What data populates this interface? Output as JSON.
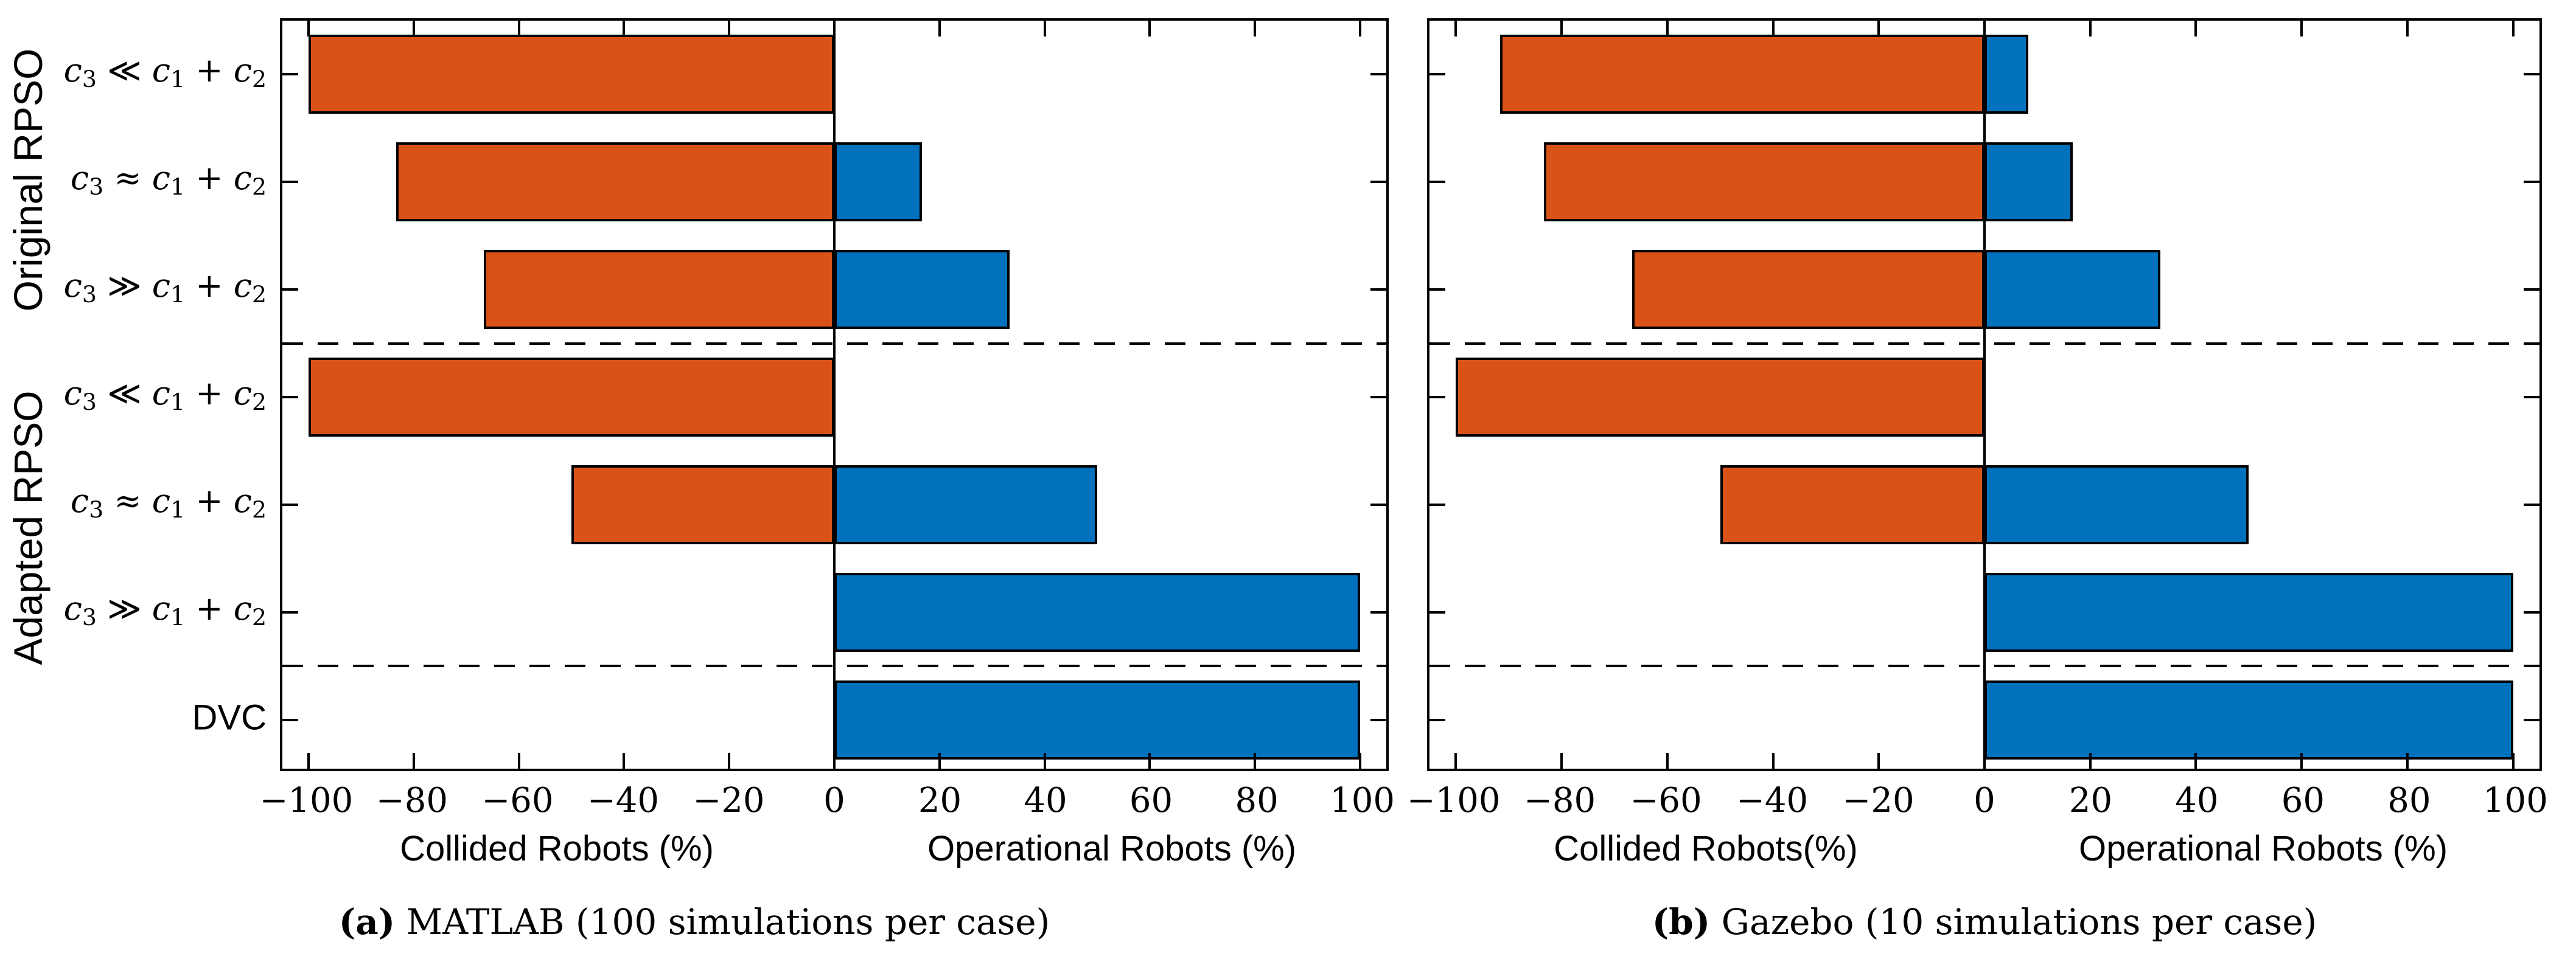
{
  "figure": {
    "y_group_labels": [
      "Original RPSO",
      "Adapted RPSO"
    ],
    "categories": [
      "c3 ≪ c1 + c2",
      "c3 ≈ c1 + c2",
      "c3 ≫ c1 + c2",
      "c3 ≪ c1 + c2",
      "c3 ≈ c1 + c2",
      "c3 ≫ c1 + c2",
      "DVC"
    ],
    "colors": {
      "collided": "#D95319",
      "operational": "#0072BD",
      "axis": "#000000"
    },
    "panels": [
      {
        "caption_label": "(a)",
        "caption_text": " MATLAB (100 simulations per case)",
        "xlabel_left": "Collided Robots (%)",
        "xlabel_right": "Operational Robots (%)"
      },
      {
        "caption_label": "(b)",
        "caption_text": " Gazebo (10 simulations per case)",
        "xlabel_left": "Collided Robots(%)",
        "xlabel_right": "Operational Robots (%)"
      }
    ]
  },
  "chart_data": [
    {
      "type": "bar",
      "orientation": "horizontal-diverging",
      "title": "(a) MATLAB (100 simulations per case)",
      "categories": [
        "c3 ≪ c1 + c2",
        "c3 ≈ c1 + c2",
        "c3 ≫ c1 + c2",
        "c3 ≪ c1 + c2",
        "c3 ≈ c1 + c2",
        "c3 ≫ c1 + c2",
        "DVC"
      ],
      "category_groups": [
        "Original RPSO",
        "Original RPSO",
        "Original RPSO",
        "Adapted RPSO",
        "Adapted RPSO",
        "Adapted RPSO",
        "DVC"
      ],
      "series": [
        {
          "name": "Collided Robots (%)",
          "color": "#D95319",
          "values": [
            -100,
            -83.3,
            -66.7,
            -100,
            -50,
            0,
            0
          ]
        },
        {
          "name": "Operational Robots (%)",
          "color": "#0072BD",
          "values": [
            0,
            16.7,
            33.3,
            0,
            50,
            100,
            100
          ]
        }
      ],
      "xlabel_left": "Collided Robots (%)",
      "xlabel_right": "Operational Robots (%)",
      "xlim": [
        -105,
        105
      ],
      "xticks": [
        -100,
        -80,
        -60,
        -40,
        -20,
        0,
        20,
        40,
        60,
        80,
        100
      ],
      "group_separators_after": [
        2,
        5
      ],
      "grid": false,
      "legend": "none"
    },
    {
      "type": "bar",
      "orientation": "horizontal-diverging",
      "title": "(b) Gazebo (10 simulations per case)",
      "categories": [
        "c3 ≪ c1 + c2",
        "c3 ≈ c1 + c2",
        "c3 ≫ c1 + c2",
        "c3 ≪ c1 + c2",
        "c3 ≈ c1 + c2",
        "c3 ≫ c1 + c2",
        "DVC"
      ],
      "category_groups": [
        "Original RPSO",
        "Original RPSO",
        "Original RPSO",
        "Adapted RPSO",
        "Adapted RPSO",
        "Adapted RPSO",
        "DVC"
      ],
      "series": [
        {
          "name": "Collided Robots (%)",
          "color": "#D95319",
          "values": [
            -91.7,
            -83.3,
            -66.7,
            -100,
            -50,
            0,
            0
          ]
        },
        {
          "name": "Operational Robots (%)",
          "color": "#0072BD",
          "values": [
            8.3,
            16.7,
            33.3,
            0,
            50,
            100,
            100
          ]
        }
      ],
      "xlabel_left": "Collided Robots(%)",
      "xlabel_right": "Operational Robots (%)",
      "xlim": [
        -105,
        105
      ],
      "xticks": [
        -100,
        -80,
        -60,
        -40,
        -20,
        0,
        20,
        40,
        60,
        80,
        100
      ],
      "group_separators_after": [
        2,
        5
      ],
      "grid": false,
      "legend": "none"
    }
  ]
}
